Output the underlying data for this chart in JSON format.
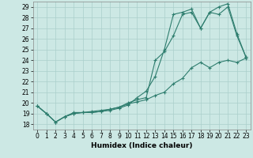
{
  "xlabel": "Humidex (Indice chaleur)",
  "background_color": "#cce8e4",
  "grid_color": "#aacfcb",
  "line_color": "#2e7d6e",
  "xlim": [
    -0.5,
    23.5
  ],
  "ylim": [
    17.5,
    29.5
  ],
  "yticks": [
    18,
    19,
    20,
    21,
    22,
    23,
    24,
    25,
    26,
    27,
    28,
    29
  ],
  "xticks": [
    0,
    1,
    2,
    3,
    4,
    5,
    6,
    7,
    8,
    9,
    10,
    11,
    12,
    13,
    14,
    15,
    16,
    17,
    18,
    19,
    20,
    21,
    22,
    23
  ],
  "line1_x": [
    0,
    1,
    2,
    3,
    4,
    5,
    6,
    7,
    8,
    9,
    10,
    11,
    12,
    13,
    14,
    15,
    16,
    17,
    18,
    19,
    20,
    21,
    22,
    23
  ],
  "line1_y": [
    19.7,
    19.0,
    18.2,
    18.7,
    19.0,
    19.1,
    19.1,
    19.2,
    19.3,
    19.5,
    19.8,
    20.5,
    21.1,
    22.5,
    25.0,
    28.3,
    28.5,
    28.8,
    27.0,
    28.5,
    29.0,
    29.3,
    26.5,
    24.3
  ],
  "line2_x": [
    0,
    1,
    2,
    3,
    4,
    5,
    6,
    7,
    8,
    9,
    10,
    11,
    12,
    13,
    14,
    15,
    16,
    17,
    18,
    19,
    20,
    21,
    22,
    23
  ],
  "line2_y": [
    19.7,
    19.0,
    18.2,
    18.7,
    19.1,
    19.1,
    19.2,
    19.3,
    19.4,
    19.6,
    20.0,
    20.3,
    20.5,
    24.0,
    24.8,
    26.3,
    28.3,
    28.5,
    27.0,
    28.5,
    28.3,
    29.0,
    26.3,
    24.3
  ],
  "line3_x": [
    0,
    1,
    2,
    3,
    4,
    5,
    6,
    7,
    8,
    9,
    10,
    11,
    12,
    13,
    14,
    15,
    16,
    17,
    18,
    19,
    20,
    21,
    22,
    23
  ],
  "line3_y": [
    19.7,
    19.0,
    18.2,
    18.7,
    19.0,
    19.1,
    19.1,
    19.2,
    19.4,
    19.6,
    19.9,
    20.1,
    20.3,
    20.7,
    21.0,
    21.8,
    22.3,
    23.3,
    23.8,
    23.3,
    23.8,
    24.0,
    23.8,
    24.2
  ],
  "tick_fontsize": 5.5,
  "xlabel_fontsize": 6.5
}
